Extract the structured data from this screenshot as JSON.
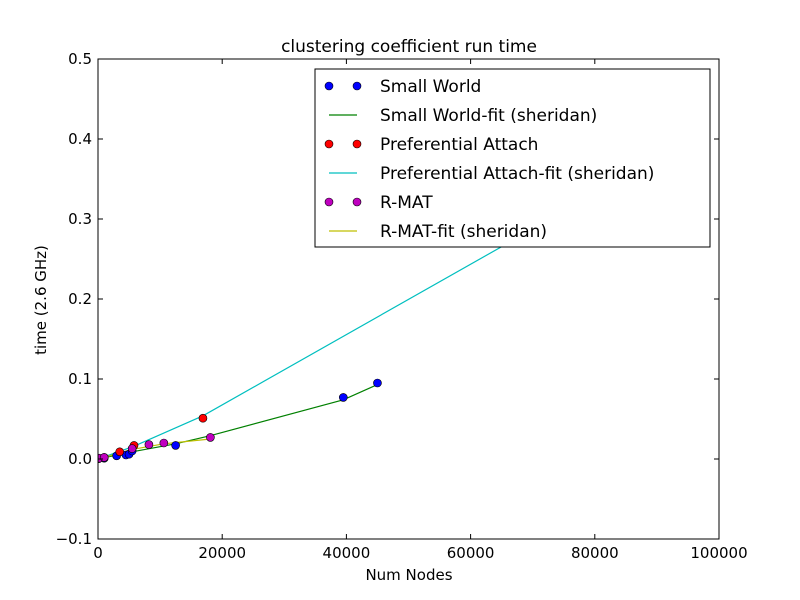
{
  "chart_data": {
    "type": "line",
    "title": "clustering coefficient run time",
    "xlabel": "Num Nodes",
    "ylabel": "time (2.6 GHz)",
    "xlim": [
      0,
      100000
    ],
    "ylim": [
      -0.1,
      0.5
    ],
    "xticks": [
      0,
      20000,
      40000,
      60000,
      80000,
      100000
    ],
    "xtick_labels": [
      "0",
      "20000",
      "40000",
      "60000",
      "80000",
      "100000"
    ],
    "yticks": [
      -0.1,
      0.0,
      0.1,
      0.2,
      0.3,
      0.4,
      0.5
    ],
    "ytick_labels": [
      "−0.1",
      "0.0",
      "0.1",
      "0.2",
      "0.3",
      "0.4",
      "0.5"
    ],
    "grid": false,
    "legend_position": "top-right",
    "series": [
      {
        "name": "Small World",
        "kind": "markers",
        "color": "#0000ff",
        "points": [
          [
            100,
            0.0005
          ],
          [
            1000,
            0.001
          ],
          [
            3000,
            0.004
          ],
          [
            4500,
            0.005
          ],
          [
            5000,
            0.006
          ],
          [
            5500,
            0.01
          ],
          [
            12500,
            0.017
          ],
          [
            39500,
            0.077
          ],
          [
            45000,
            0.095
          ]
        ]
      },
      {
        "name": "Small World-fit (sheridan)",
        "kind": "line",
        "color": "#008000",
        "points": [
          [
            0,
            0.0
          ],
          [
            5500,
            0.009
          ],
          [
            12500,
            0.019
          ],
          [
            18000,
            0.029
          ],
          [
            39500,
            0.074
          ],
          [
            45000,
            0.093
          ]
        ]
      },
      {
        "name": "Preferential Attach",
        "kind": "markers",
        "color": "#ff0000",
        "points": [
          [
            100,
            0.0005
          ],
          [
            1000,
            0.002
          ],
          [
            3500,
            0.009
          ],
          [
            5800,
            0.017
          ],
          [
            16900,
            0.051
          ]
        ]
      },
      {
        "name": "Preferential Attach-fit (sheridan)",
        "kind": "line",
        "color": "#00bfbf",
        "points": [
          [
            0,
            0.0
          ],
          [
            5800,
            0.016
          ],
          [
            16900,
            0.054
          ],
          [
            69000,
            0.283
          ]
        ]
      },
      {
        "name": "R-MAT",
        "kind": "markers",
        "color": "#bf00bf",
        "points": [
          [
            200,
            0.001
          ],
          [
            1000,
            0.002
          ],
          [
            5500,
            0.013
          ],
          [
            8200,
            0.018
          ],
          [
            10600,
            0.02
          ],
          [
            18100,
            0.027
          ]
        ]
      },
      {
        "name": "R-MAT-fit (sheridan)",
        "kind": "line",
        "color": "#bfbf00",
        "points": [
          [
            0,
            0.0
          ],
          [
            5500,
            0.012
          ],
          [
            10600,
            0.019
          ],
          [
            18100,
            0.025
          ]
        ]
      }
    ]
  }
}
